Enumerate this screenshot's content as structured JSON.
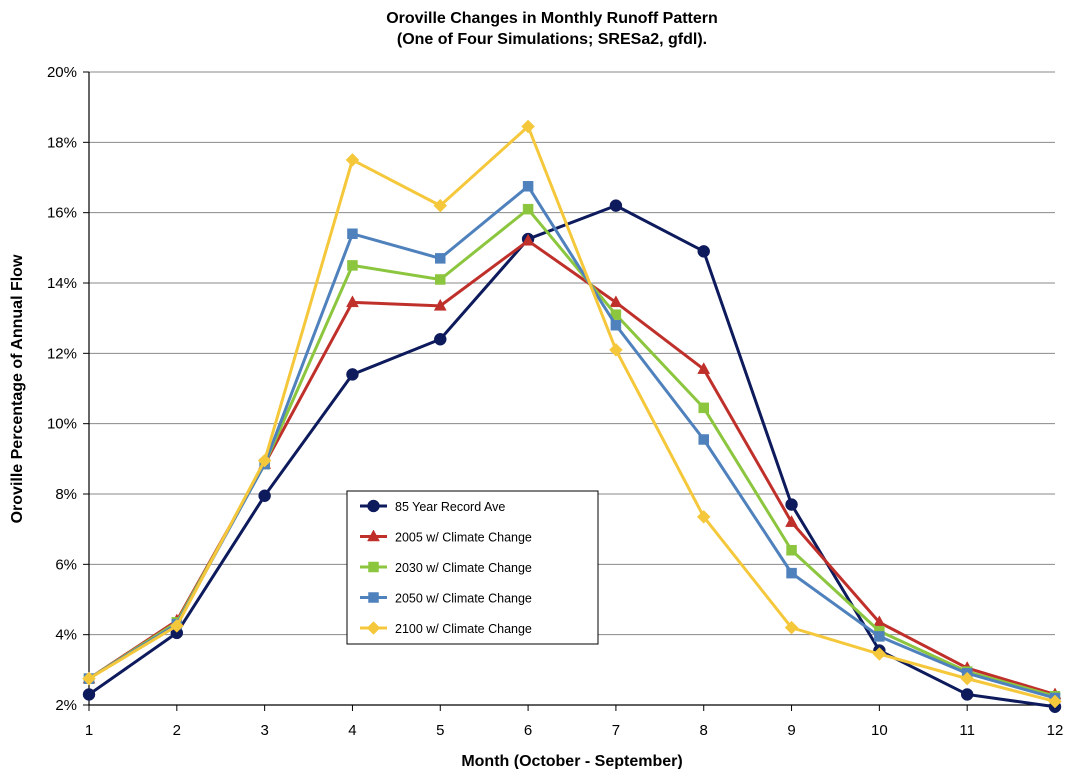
{
  "chart_data": {
    "type": "line",
    "title": "Oroville Changes in Monthly Runoff Pattern",
    "subtitle": "(One of Four Simulations; SRESa2, gfdl).",
    "xlabel": "Month (October - September)",
    "ylabel": "Oroville Percentage of Annual Flow",
    "x": [
      1,
      2,
      3,
      4,
      5,
      6,
      7,
      8,
      9,
      10,
      11,
      12
    ],
    "x_tick_labels": [
      "1",
      "2",
      "3",
      "4",
      "5",
      "6",
      "7",
      "8",
      "9",
      "10",
      "11",
      "12"
    ],
    "xlim": [
      1,
      12
    ],
    "ylim": [
      2,
      20
    ],
    "y_tick_labels": [
      "2%",
      "4%",
      "6%",
      "8%",
      "10%",
      "12%",
      "14%",
      "16%",
      "18%",
      "20%"
    ],
    "y_ticks": [
      2,
      4,
      6,
      8,
      10,
      12,
      14,
      16,
      18,
      20
    ],
    "grid": "horizontal",
    "legend_position": "center-left",
    "series": [
      {
        "name": "85 Year Record Ave",
        "color": "#0d1a5c",
        "marker": "circle",
        "values": [
          2.3,
          4.05,
          7.95,
          11.4,
          12.4,
          15.25,
          16.2,
          14.9,
          7.7,
          3.55,
          2.3,
          1.95
        ]
      },
      {
        "name": "2005 w/ Climate Change",
        "color": "#c0302a",
        "marker": "triangle",
        "values": [
          2.75,
          4.4,
          8.85,
          13.45,
          13.35,
          15.2,
          13.45,
          11.55,
          7.2,
          4.35,
          3.05,
          2.3
        ]
      },
      {
        "name": "2030 w/ Climate Change",
        "color": "#8cc63f",
        "marker": "square",
        "values": [
          2.75,
          4.35,
          8.85,
          14.5,
          14.1,
          16.1,
          13.1,
          10.45,
          6.4,
          4.1,
          2.95,
          2.25
        ]
      },
      {
        "name": "2050 w/ Climate Change",
        "color": "#4f81bd",
        "marker": "square",
        "values": [
          2.75,
          4.3,
          8.85,
          15.4,
          14.7,
          16.75,
          12.8,
          9.55,
          5.75,
          3.95,
          2.9,
          2.2
        ]
      },
      {
        "name": "2100 w/ Climate Change",
        "color": "#f5c83c",
        "marker": "diamond",
        "values": [
          2.75,
          4.25,
          8.95,
          17.5,
          16.2,
          18.45,
          12.1,
          7.35,
          4.2,
          3.45,
          2.75,
          2.1
        ]
      }
    ]
  }
}
